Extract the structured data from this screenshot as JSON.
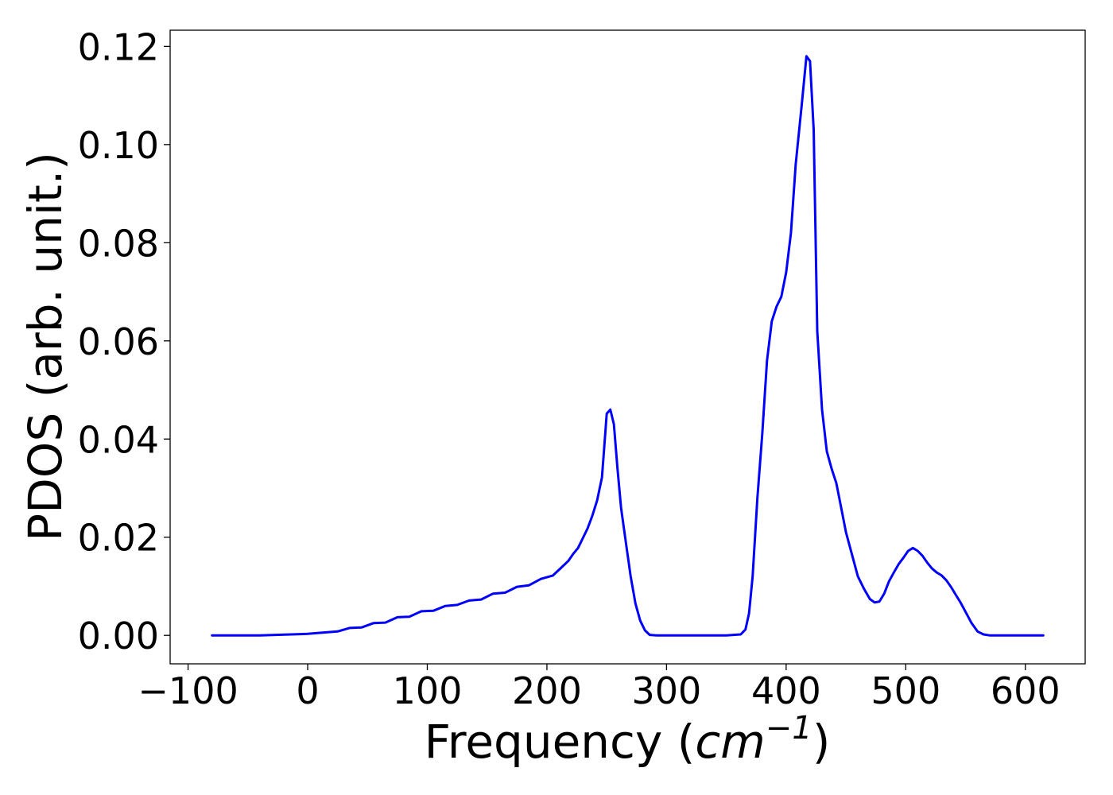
{
  "chart_data": {
    "type": "line",
    "xlabel": "Frequency",
    "xlabel_unit_open": "(",
    "xlabel_unit_base": "cm",
    "xlabel_unit_exp": "−1",
    "xlabel_unit_close": ")",
    "ylabel": "PDOS (arb. unit.)",
    "xlim": [
      -115,
      650
    ],
    "ylim": [
      -0.0058,
      0.1233
    ],
    "x_ticks": [
      -100,
      0,
      100,
      200,
      300,
      400,
      500,
      600
    ],
    "x_tick_labels": [
      "−100",
      "0",
      "100",
      "200",
      "300",
      "400",
      "500",
      "600"
    ],
    "y_ticks": [
      0.0,
      0.02,
      0.04,
      0.06,
      0.08,
      0.1,
      0.12
    ],
    "y_tick_labels": [
      "0.00",
      "0.02",
      "0.04",
      "0.06",
      "0.08",
      "0.10",
      "0.12"
    ],
    "grid": false,
    "legend": "none",
    "series": [
      {
        "color": "#0000ff",
        "x": [
          -80,
          -40,
          0,
          25,
          35,
          45,
          55,
          65,
          75,
          85,
          95,
          105,
          115,
          125,
          135,
          145,
          155,
          165,
          175,
          185,
          195,
          205,
          212,
          218,
          222,
          226,
          230,
          234,
          238,
          242,
          246,
          250,
          253,
          256,
          259,
          262,
          266,
          270,
          274,
          278,
          282,
          286,
          292,
          300,
          320,
          350,
          362,
          366,
          369,
          372,
          376,
          380,
          384,
          388,
          392,
          396,
          400,
          404,
          408,
          413,
          417,
          420,
          423,
          426,
          430,
          434,
          438,
          442,
          446,
          450,
          455,
          460,
          465,
          470,
          474,
          478,
          482,
          486,
          490,
          494,
          498,
          502,
          506,
          510,
          514,
          518,
          522,
          526,
          530,
          534,
          538,
          542,
          546,
          550,
          555,
          560,
          565,
          570,
          580,
          600,
          615
        ],
        "y": [
          0.0,
          0.0,
          0.0003,
          0.0008,
          0.0015,
          0.0016,
          0.0025,
          0.0026,
          0.0037,
          0.0038,
          0.0049,
          0.005,
          0.006,
          0.0062,
          0.0071,
          0.0073,
          0.0085,
          0.0087,
          0.0099,
          0.0102,
          0.0115,
          0.0122,
          0.0138,
          0.0152,
          0.0166,
          0.0178,
          0.0198,
          0.0218,
          0.0244,
          0.0275,
          0.0322,
          0.0452,
          0.046,
          0.043,
          0.034,
          0.026,
          0.019,
          0.012,
          0.0065,
          0.003,
          0.001,
          0.0001,
          0.0,
          0.0,
          0.0,
          0.0,
          0.0002,
          0.0012,
          0.0045,
          0.012,
          0.028,
          0.041,
          0.056,
          0.064,
          0.067,
          0.069,
          0.074,
          0.082,
          0.096,
          0.108,
          0.118,
          0.117,
          0.103,
          0.062,
          0.046,
          0.0375,
          0.034,
          0.031,
          0.026,
          0.021,
          0.0165,
          0.012,
          0.0095,
          0.0074,
          0.0067,
          0.0069,
          0.0085,
          0.011,
          0.0128,
          0.0145,
          0.0158,
          0.0172,
          0.0178,
          0.0172,
          0.0162,
          0.0148,
          0.0136,
          0.0128,
          0.0122,
          0.0112,
          0.0098,
          0.0082,
          0.0066,
          0.0048,
          0.0025,
          0.0008,
          0.0002,
          0.0,
          0.0,
          0.0,
          0.0
        ]
      }
    ]
  }
}
